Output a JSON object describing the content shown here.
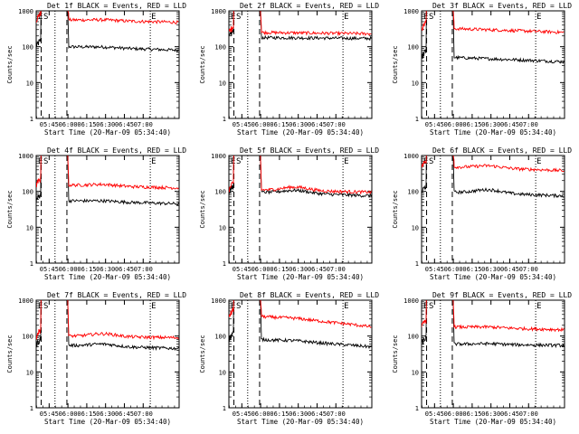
{
  "colors": {
    "events": "#000000",
    "lld": "#ff0000",
    "background": "#ffffff",
    "axes": "#000000"
  },
  "chart_data": [
    {
      "type": "line",
      "title": "Det 1f BLACK = Events, RED = LLD",
      "xlabel": "Start Time (20-Mar-09 05:34:40)",
      "ylabel": "Counts/sec",
      "yscale": "log",
      "ylim": [
        1,
        1000
      ],
      "x_ticks": [
        "05:45",
        "06:00",
        "06:15",
        "06:30",
        "06:45",
        "07:00"
      ],
      "y_ticks": [
        "1",
        "10",
        "100",
        "1000"
      ],
      "markers": [
        "E",
        "S",
        "E"
      ],
      "series": [
        {
          "name": "Events",
          "color": "#000000",
          "level_start": 100,
          "level_end": 80,
          "bump": 1.05
        },
        {
          "name": "LLD",
          "color": "#ff0000",
          "level_start": 560,
          "level_end": 480,
          "bump": 1.05
        }
      ]
    },
    {
      "type": "line",
      "title": "Det 2f BLACK = Events, RED = LLD",
      "xlabel": "Start Time (20-Mar-09 05:34:40)",
      "ylabel": "Counts/sec",
      "yscale": "log",
      "ylim": [
        1,
        1000
      ],
      "x_ticks": [
        "05:45",
        "06:00",
        "06:15",
        "06:30",
        "06:45",
        "07:00"
      ],
      "y_ticks": [
        "1",
        "10",
        "100",
        "1000"
      ],
      "markers": [
        "E",
        "S",
        "E"
      ],
      "series": [
        {
          "name": "Events",
          "color": "#000000",
          "level_start": 180,
          "level_end": 170,
          "bump": 1.0
        },
        {
          "name": "LLD",
          "color": "#ff0000",
          "level_start": 250,
          "level_end": 230,
          "bump": 1.0
        }
      ]
    },
    {
      "type": "line",
      "title": "Det 3f BLACK = Events, RED = LLD",
      "xlabel": "Start Time (20-Mar-09 05:34:40)",
      "ylabel": "Counts/sec",
      "yscale": "log",
      "ylim": [
        1,
        1000
      ],
      "x_ticks": [
        "05:45",
        "06:00",
        "06:15",
        "06:30",
        "06:45",
        "07:00"
      ],
      "y_ticks": [
        "1",
        "10",
        "100",
        "1000"
      ],
      "markers": [
        "E",
        "S",
        "E"
      ],
      "series": [
        {
          "name": "Events",
          "color": "#000000",
          "level_start": 50,
          "level_end": 38,
          "bump": 1.0
        },
        {
          "name": "LLD",
          "color": "#ff0000",
          "level_start": 320,
          "level_end": 250,
          "bump": 1.0
        }
      ]
    },
    {
      "type": "line",
      "title": "Det 4f BLACK = Events, RED = LLD",
      "xlabel": "Start Time (20-Mar-09 05:34:40)",
      "ylabel": "Counts/sec",
      "yscale": "log",
      "ylim": [
        1,
        1000
      ],
      "x_ticks": [
        "05:45",
        "06:00",
        "06:15",
        "06:30",
        "06:45",
        "07:00"
      ],
      "y_ticks": [
        "1",
        "10",
        "100",
        "1000"
      ],
      "markers": [
        "E",
        "S",
        "E"
      ],
      "series": [
        {
          "name": "Events",
          "color": "#000000",
          "level_start": 55,
          "level_end": 45,
          "bump": 1.05
        },
        {
          "name": "LLD",
          "color": "#ff0000",
          "level_start": 150,
          "level_end": 125,
          "bump": 1.1
        }
      ]
    },
    {
      "type": "line",
      "title": "Det 5f BLACK = Events, RED = LLD",
      "xlabel": "Start Time (20-Mar-09 05:34:40)",
      "ylabel": "Counts/sec",
      "yscale": "log",
      "ylim": [
        1,
        1000
      ],
      "x_ticks": [
        "05:45",
        "06:00",
        "06:15",
        "06:30",
        "06:45",
        "07:00"
      ],
      "y_ticks": [
        "1",
        "10",
        "100",
        "1000"
      ],
      "markers": [
        "E",
        "S",
        "E"
      ],
      "series": [
        {
          "name": "Events",
          "color": "#000000",
          "level_start": 95,
          "level_end": 75,
          "bump": 1.2
        },
        {
          "name": "LLD",
          "color": "#ff0000",
          "level_start": 110,
          "level_end": 95,
          "bump": 1.25
        }
      ]
    },
    {
      "type": "line",
      "title": "Det 6f BLACK = Events, RED = LLD",
      "xlabel": "Start Time (20-Mar-09 05:34:40)",
      "ylabel": "Counts/sec",
      "yscale": "log",
      "ylim": [
        1,
        1000
      ],
      "x_ticks": [
        "05:45",
        "06:00",
        "06:15",
        "06:30",
        "06:45",
        "07:00"
      ],
      "y_ticks": [
        "1",
        "10",
        "100",
        "1000"
      ],
      "markers": [
        "E",
        "S",
        "E"
      ],
      "series": [
        {
          "name": "Events",
          "color": "#000000",
          "level_start": 95,
          "level_end": 75,
          "bump": 1.25
        },
        {
          "name": "LLD",
          "color": "#ff0000",
          "level_start": 480,
          "level_end": 380,
          "bump": 1.15
        }
      ]
    },
    {
      "type": "line",
      "title": "Det 7f BLACK = Events, RED = LLD",
      "xlabel": "Start Time (20-Mar-09 05:34:40)",
      "ylabel": "Counts/sec",
      "yscale": "log",
      "ylim": [
        1,
        1000
      ],
      "x_ticks": [
        "05:45",
        "06:00",
        "06:15",
        "06:30",
        "06:45",
        "07:00"
      ],
      "y_ticks": [
        "1",
        "10",
        "100",
        "1000"
      ],
      "markers": [
        "E",
        "S",
        "E"
      ],
      "series": [
        {
          "name": "Events",
          "color": "#000000",
          "level_start": 55,
          "level_end": 45,
          "bump": 1.15
        },
        {
          "name": "LLD",
          "color": "#ff0000",
          "level_start": 100,
          "level_end": 90,
          "bump": 1.2
        }
      ]
    },
    {
      "type": "line",
      "title": "Det 8f BLACK = Events, RED = LLD",
      "xlabel": "Start Time (20-Mar-09 05:34:40)",
      "ylabel": "Counts/sec",
      "yscale": "log",
      "ylim": [
        1,
        1000
      ],
      "x_ticks": [
        "05:45",
        "06:00",
        "06:15",
        "06:30",
        "06:45",
        "07:00"
      ],
      "y_ticks": [
        "1",
        "10",
        "100",
        "1000"
      ],
      "markers": [
        "E",
        "S",
        "E"
      ],
      "series": [
        {
          "name": "Events",
          "color": "#000000",
          "level_start": 80,
          "level_end": 50,
          "bump": 1.05
        },
        {
          "name": "LLD",
          "color": "#ff0000",
          "level_start": 350,
          "level_end": 180,
          "bump": 1.05
        }
      ]
    },
    {
      "type": "line",
      "title": "Det 9f BLACK = Events, RED = LLD",
      "xlabel": "Start Time (20-Mar-09 05:34:40)",
      "ylabel": "Counts/sec",
      "yscale": "log",
      "ylim": [
        1,
        1000
      ],
      "x_ticks": [
        "05:45",
        "06:00",
        "06:15",
        "06:30",
        "06:45",
        "07:00"
      ],
      "y_ticks": [
        "1",
        "10",
        "100",
        "1000"
      ],
      "markers": [
        "E",
        "S",
        "E"
      ],
      "series": [
        {
          "name": "Events",
          "color": "#000000",
          "level_start": 60,
          "level_end": 55,
          "bump": 1.05
        },
        {
          "name": "LLD",
          "color": "#ff0000",
          "level_start": 180,
          "level_end": 150,
          "bump": 1.05
        }
      ]
    }
  ]
}
